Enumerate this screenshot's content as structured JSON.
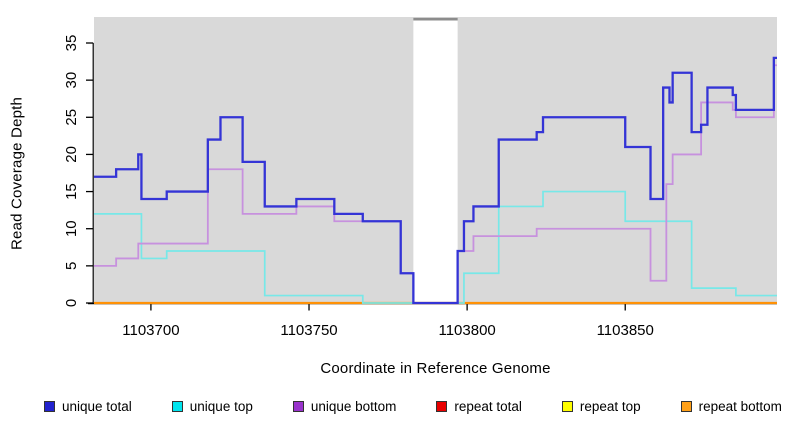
{
  "axes": {
    "xlabel": "Coordinate in Reference Genome",
    "ylabel": "Read Coverage Depth"
  },
  "chart_data": {
    "type": "step-line",
    "title": "",
    "xlabel": "Coordinate in Reference Genome",
    "ylabel": "Read Coverage Depth",
    "xlim": [
      1103682,
      1103898
    ],
    "ylim": [
      0,
      35
    ],
    "xticks": [
      1103700,
      1103750,
      1103800,
      1103850
    ],
    "yticks": [
      0,
      5,
      10,
      15,
      20,
      25,
      30,
      35
    ],
    "background": "#D9D9D9",
    "gap_region": {
      "from": 1103783,
      "to": 1103797
    },
    "series": [
      {
        "name": "unique total",
        "color": "#3434D6",
        "legend_color": "#2222CE",
        "width": 2.3,
        "steps": [
          [
            1103682,
            17
          ],
          [
            1103689,
            18
          ],
          [
            1103696,
            20
          ],
          [
            1103697,
            14
          ],
          [
            1103705,
            15
          ],
          [
            1103718,
            22
          ],
          [
            1103722,
            25
          ],
          [
            1103729,
            19
          ],
          [
            1103736,
            13
          ],
          [
            1103746,
            14
          ],
          [
            1103758,
            12
          ],
          [
            1103767,
            11
          ],
          [
            1103779,
            4
          ],
          [
            1103783,
            0
          ],
          [
            1103797,
            7
          ],
          [
            1103799,
            11
          ],
          [
            1103802,
            13
          ],
          [
            1103810,
            22
          ],
          [
            1103822,
            23
          ],
          [
            1103824,
            25
          ],
          [
            1103850,
            21
          ],
          [
            1103858,
            14
          ],
          [
            1103862,
            29
          ],
          [
            1103864,
            27
          ],
          [
            1103865,
            31
          ],
          [
            1103871,
            23
          ],
          [
            1103874,
            24
          ],
          [
            1103876,
            29
          ],
          [
            1103884,
            28
          ],
          [
            1103885,
            26
          ],
          [
            1103897,
            33
          ]
        ]
      },
      {
        "name": "unique top",
        "color": "#77E8E8",
        "legend_color": "#00E5EE",
        "width": 1.7,
        "steps": [
          [
            1103682,
            12
          ],
          [
            1103697,
            6
          ],
          [
            1103705,
            7
          ],
          [
            1103736,
            1
          ],
          [
            1103767,
            0
          ],
          [
            1103799,
            4
          ],
          [
            1103810,
            13
          ],
          [
            1103824,
            15
          ],
          [
            1103850,
            11
          ],
          [
            1103871,
            2
          ],
          [
            1103885,
            1
          ]
        ]
      },
      {
        "name": "unique bottom",
        "color": "#C791DE",
        "legend_color": "#9933CC",
        "width": 1.8,
        "steps": [
          [
            1103682,
            5
          ],
          [
            1103689,
            6
          ],
          [
            1103696,
            8
          ],
          [
            1103718,
            18
          ],
          [
            1103729,
            12
          ],
          [
            1103746,
            13
          ],
          [
            1103758,
            11
          ],
          [
            1103779,
            4
          ],
          [
            1103783,
            0
          ],
          [
            1103797,
            7
          ],
          [
            1103802,
            9
          ],
          [
            1103822,
            10
          ],
          [
            1103858,
            3
          ],
          [
            1103863,
            16
          ],
          [
            1103865,
            20
          ],
          [
            1103874,
            27
          ],
          [
            1103884,
            26
          ],
          [
            1103885,
            25
          ],
          [
            1103897,
            32
          ]
        ]
      },
      {
        "name": "repeat total",
        "color": "#E80000",
        "legend_color": "#E80000",
        "width": 1.4,
        "steps": [
          [
            1103682,
            0
          ]
        ]
      },
      {
        "name": "repeat top",
        "color": "#FFFF00",
        "legend_color": "#FFFF00",
        "width": 1.4,
        "steps": [
          [
            1103682,
            0
          ]
        ]
      },
      {
        "name": "repeat bottom",
        "color": "#FF9105",
        "legend_color": "#FFA018",
        "width": 2.2,
        "steps": [
          [
            1103682,
            0
          ]
        ]
      }
    ],
    "paint_order": [
      "repeat total",
      "repeat top",
      "repeat bottom",
      "unique top",
      "unique bottom",
      "unique total"
    ],
    "legend_position": "bottom"
  }
}
